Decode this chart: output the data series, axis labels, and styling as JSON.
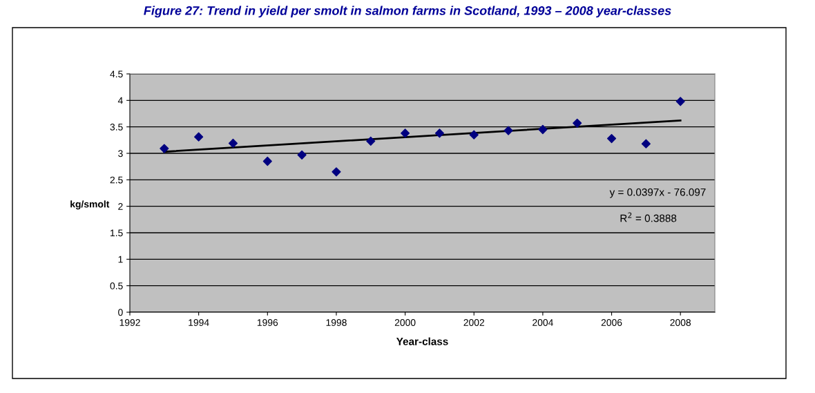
{
  "chart_data": {
    "type": "scatter",
    "title": "Figure 27: Trend in yield per smolt in salmon farms in Scotland, 1993 – 2008 year-classes",
    "xlabel": "Year-class",
    "ylabel": "kg/smolt",
    "x": [
      1993,
      1994,
      1995,
      1996,
      1997,
      1998,
      1999,
      2000,
      2001,
      2002,
      2003,
      2004,
      2005,
      2006,
      2007,
      2008
    ],
    "series": [
      {
        "color": "#000080",
        "marker": "diamond",
        "values": [
          3.09,
          3.31,
          3.19,
          2.85,
          2.97,
          2.65,
          3.23,
          3.38,
          3.38,
          3.35,
          3.43,
          3.45,
          3.57,
          3.28,
          3.18,
          3.98
        ]
      },
      {
        "type": "line",
        "color": "#000000",
        "line_style": "solid",
        "x": [
          1993,
          2008
        ],
        "values": [
          3.03,
          3.62
        ]
      }
    ],
    "annotations": [
      "y = 0.0397x - 76.097",
      "R$^{2}$ = 0.3888"
    ],
    "xlim": [
      1992,
      2009
    ],
    "xticks": [
      1992,
      1994,
      1996,
      1998,
      2000,
      2002,
      2004,
      2006,
      2008
    ],
    "ylim": [
      0,
      4.5
    ],
    "yticks": [
      0,
      0.5,
      1,
      1.5,
      2,
      2.5,
      3,
      3.5,
      4,
      4.5
    ],
    "grid": "y",
    "legend": false
  }
}
